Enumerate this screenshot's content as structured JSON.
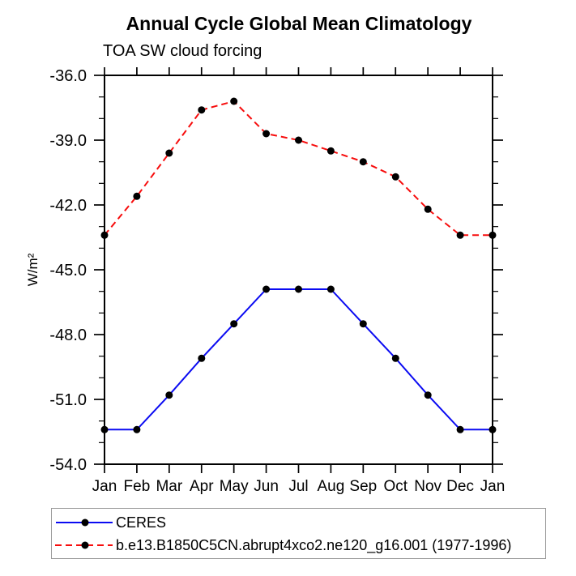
{
  "chart_data": {
    "type": "line",
    "title": "Annual Cycle Global Mean Climatology",
    "subtitle": "TOA SW cloud forcing",
    "ylabel": "W/m²",
    "xlabel": "",
    "categories": [
      "Jan",
      "Feb",
      "Mar",
      "Apr",
      "May",
      "Jun",
      "Jul",
      "Aug",
      "Sep",
      "Oct",
      "Nov",
      "Dec",
      "Jan"
    ],
    "ylim": [
      -54.0,
      -36.0
    ],
    "ytick_values": [
      -36,
      -39,
      -42,
      -45,
      -48,
      -51,
      -54
    ],
    "ytick_labels": [
      "-36.0",
      "-39.0",
      "-42.0",
      "-45.0",
      "-48.0",
      "-51.0",
      "-54.0"
    ],
    "yminor_step": 1.0,
    "grid": false,
    "legend_position": "bottom",
    "series": [
      {
        "name": "CERES",
        "color": "#0b0bf2",
        "line_style": "solid",
        "marker": "filled-circle",
        "marker_color": "#000000",
        "values": [
          -52.4,
          -52.4,
          -50.8,
          -49.1,
          -47.5,
          -45.9,
          -45.9,
          -45.9,
          -47.5,
          -49.1,
          -50.8,
          -52.4,
          -52.4
        ]
      },
      {
        "name": "b.e13.B1850C5CN.abrupt4xco2.ne120_g16.001 (1977-1996)",
        "color": "#f70d0d",
        "line_style": "dashed",
        "marker": "filled-circle",
        "marker_color": "#000000",
        "values": [
          -43.4,
          -41.6,
          -39.6,
          -37.6,
          -37.2,
          -38.7,
          -39.0,
          -39.5,
          -40.0,
          -40.7,
          -42.2,
          -43.4,
          -43.4
        ]
      }
    ]
  }
}
